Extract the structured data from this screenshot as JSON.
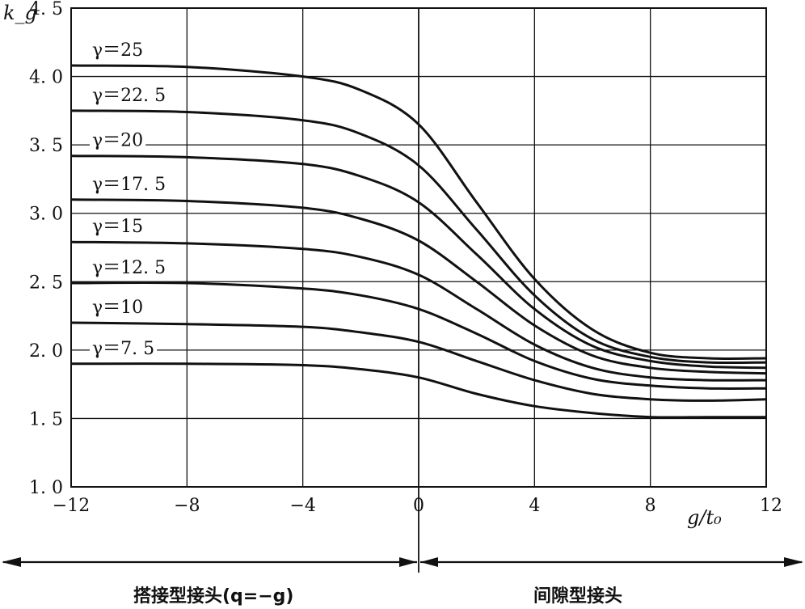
{
  "chart_data": {
    "type": "line",
    "xlabel": "g/t₀",
    "ylabel": "k_g",
    "xlim": [
      -12,
      12
    ],
    "ylim": [
      1.0,
      4.5
    ],
    "xticks": [
      -12,
      -8,
      -4,
      0,
      4,
      8,
      12
    ],
    "xtick_labels": [
      "−12",
      "−8",
      "−4",
      "0",
      "4",
      "8",
      "12"
    ],
    "yticks": [
      1.0,
      1.5,
      2.0,
      2.5,
      3.0,
      3.5,
      4.0,
      4.5
    ],
    "ytick_labels": [
      "1. 0",
      "1. 5",
      "2. 0",
      "2. 5",
      "3. 0",
      "3. 5",
      "4. 0",
      "4. 5"
    ],
    "grid": true,
    "series": [
      {
        "name": "γ = 25",
        "label": "γ＝25",
        "x": [
          -12,
          -8,
          -4,
          -2,
          0,
          2,
          4,
          6,
          8,
          10,
          12
        ],
        "y": [
          4.08,
          4.07,
          4.0,
          3.9,
          3.65,
          3.08,
          2.52,
          2.15,
          1.98,
          1.94,
          1.94
        ]
      },
      {
        "name": "γ = 22.5",
        "label": "γ＝22. 5",
        "x": [
          -12,
          -8,
          -4,
          -2,
          0,
          2,
          4,
          6,
          8,
          10,
          12
        ],
        "y": [
          3.75,
          3.74,
          3.68,
          3.58,
          3.35,
          2.88,
          2.4,
          2.08,
          1.95,
          1.91,
          1.91
        ]
      },
      {
        "name": "γ = 20",
        "label": "γ＝20",
        "x": [
          -12,
          -8,
          -4,
          -2,
          0,
          2,
          4,
          6,
          8,
          10,
          12
        ],
        "y": [
          3.42,
          3.41,
          3.36,
          3.27,
          3.08,
          2.7,
          2.3,
          2.03,
          1.92,
          1.88,
          1.87
        ]
      },
      {
        "name": "γ = 17.5",
        "label": "γ＝17. 5",
        "x": [
          -12,
          -8,
          -4,
          -2,
          0,
          2,
          4,
          6,
          8,
          10,
          12
        ],
        "y": [
          3.1,
          3.09,
          3.04,
          2.96,
          2.8,
          2.5,
          2.18,
          1.96,
          1.87,
          1.84,
          1.83
        ]
      },
      {
        "name": "γ = 15",
        "label": "γ＝15",
        "x": [
          -12,
          -8,
          -4,
          -2,
          0,
          2,
          4,
          6,
          8,
          10,
          12
        ],
        "y": [
          2.79,
          2.78,
          2.74,
          2.68,
          2.55,
          2.3,
          2.04,
          1.87,
          1.8,
          1.78,
          1.78
        ]
      },
      {
        "name": "γ = 12.5",
        "label": "γ＝12. 5",
        "x": [
          -12,
          -8,
          -4,
          -2,
          0,
          2,
          4,
          6,
          8,
          10,
          12
        ],
        "y": [
          2.49,
          2.49,
          2.45,
          2.4,
          2.3,
          2.12,
          1.92,
          1.79,
          1.74,
          1.72,
          1.72
        ]
      },
      {
        "name": "γ = 10",
        "label": "γ＝10",
        "x": [
          -12,
          -8,
          -4,
          -2,
          0,
          2,
          4,
          6,
          8,
          10,
          12
        ],
        "y": [
          2.2,
          2.19,
          2.17,
          2.13,
          2.06,
          1.92,
          1.78,
          1.68,
          1.64,
          1.63,
          1.64
        ]
      },
      {
        "name": "γ = 7.5",
        "label": "γ＝7. 5",
        "x": [
          -12,
          -8,
          -4,
          -2,
          0,
          2,
          4,
          6,
          8,
          10,
          12
        ],
        "y": [
          1.9,
          1.9,
          1.89,
          1.86,
          1.8,
          1.68,
          1.59,
          1.54,
          1.51,
          1.51,
          1.51
        ]
      }
    ],
    "annotations": {
      "left_region": "搭接型接头(q=−g)",
      "right_region": "间隙型接头"
    }
  }
}
